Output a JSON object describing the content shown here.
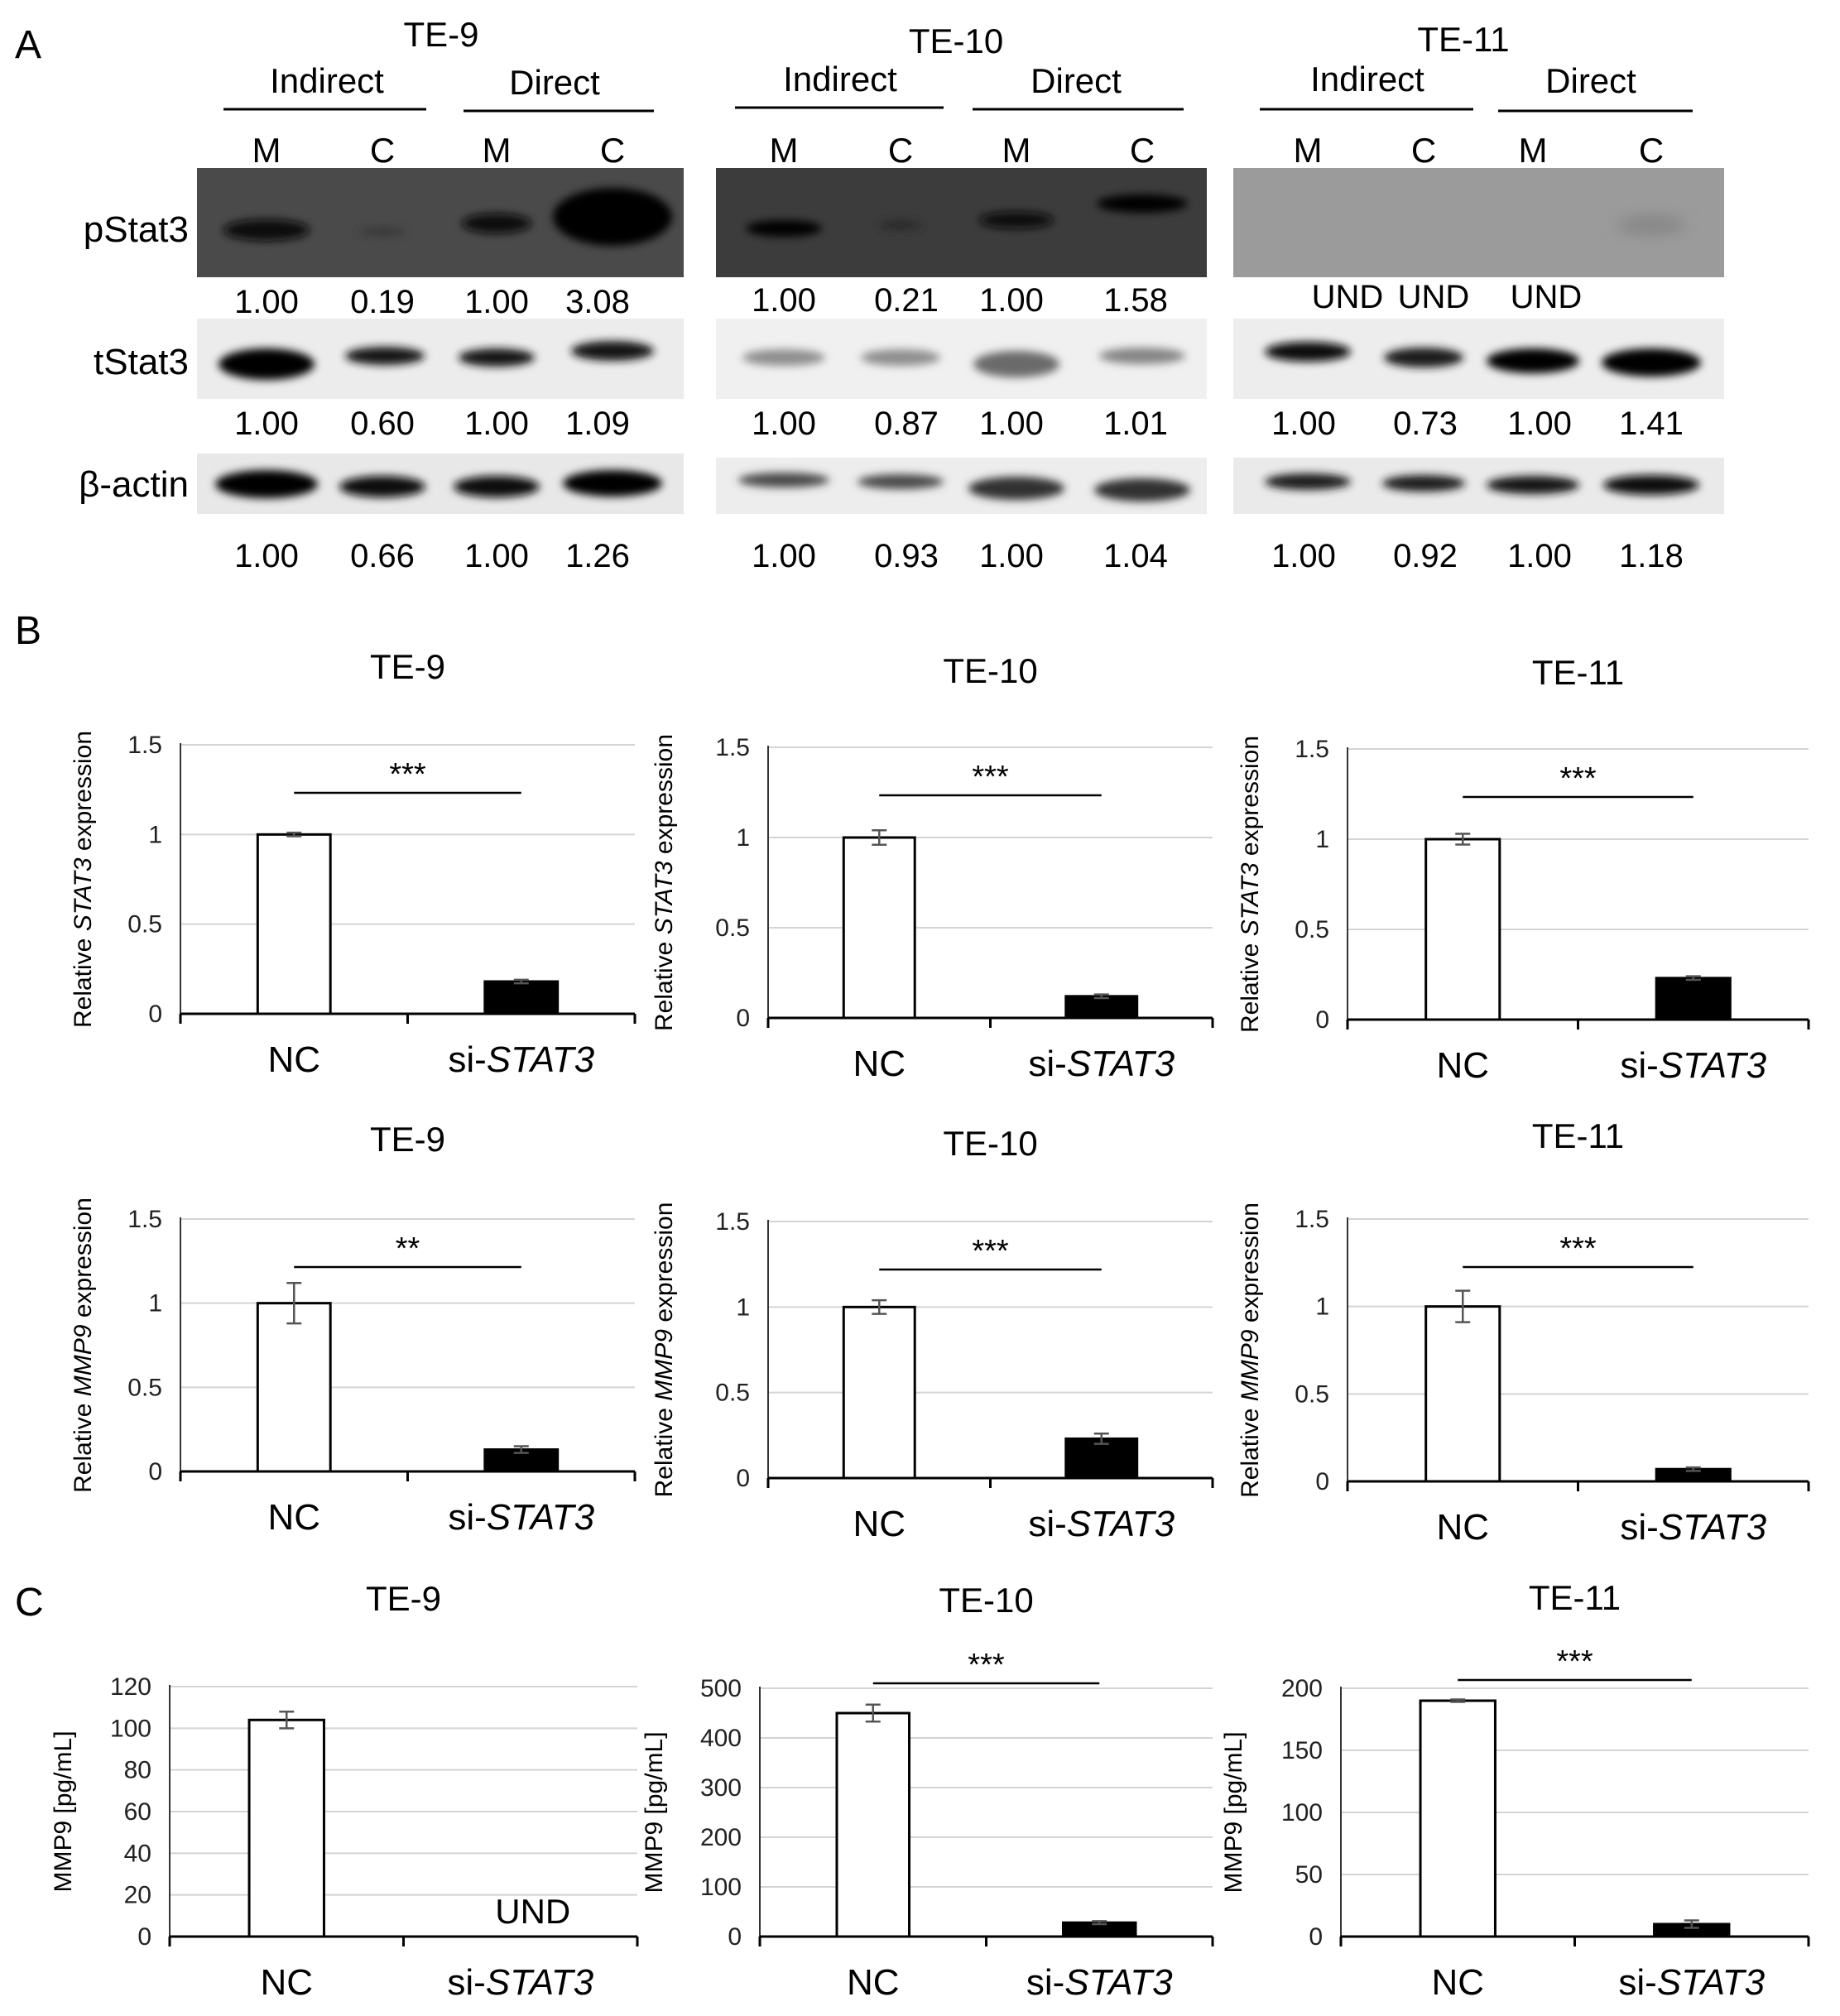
{
  "panel_letters": [
    "A",
    "B",
    "C"
  ],
  "western": {
    "lanes": [
      "M",
      "C",
      "M",
      "C"
    ],
    "groups": [
      {
        "cell": "TE-9",
        "conditions": [
          "Indirect",
          "Direct"
        ],
        "proteins": [
          {
            "name": "pStat3",
            "values": [
              "1.00",
              "0.19",
              "1.00",
              "3.08"
            ]
          },
          {
            "name": "tStat3",
            "values": [
              "1.00",
              "0.60",
              "1.00",
              "1.09"
            ]
          },
          {
            "name": "β-actin",
            "values": [
              "1.00",
              "0.66",
              "1.00",
              "1.26"
            ]
          }
        ]
      },
      {
        "cell": "TE-10",
        "conditions": [
          "Indirect",
          "Direct"
        ],
        "proteins": [
          {
            "name": "pStat3",
            "values": [
              "1.00",
              "0.21",
              "1.00",
              "1.58"
            ]
          },
          {
            "name": "tStat3",
            "values": [
              "1.00",
              "0.87",
              "1.00",
              "1.01"
            ]
          },
          {
            "name": "β-actin",
            "values": [
              "1.00",
              "0.93",
              "1.00",
              "1.04"
            ]
          }
        ]
      },
      {
        "cell": "TE-11",
        "conditions": [
          "Indirect",
          "Direct"
        ],
        "proteins": [
          {
            "name": "pStat3",
            "values": [
              "UND",
              "UND",
              "UND",
              ""
            ]
          },
          {
            "name": "tStat3",
            "values": [
              "1.00",
              "0.73",
              "1.00",
              "1.41"
            ]
          },
          {
            "name": "β-actin",
            "values": [
              "1.00",
              "0.92",
              "1.00",
              "1.18"
            ]
          }
        ]
      }
    ]
  },
  "chart_data": [
    {
      "type": "bar",
      "title": "TE-9",
      "ylabel_pre": "Relative ",
      "ylabel_gene": "STAT3",
      "ylabel_post": " expression",
      "categories": [
        "NC",
        "si-STAT3"
      ],
      "values": [
        1.0,
        0.18
      ],
      "errors": [
        0.01,
        0.01
      ],
      "ylim": [
        0,
        1.5
      ],
      "yticks": [
        "0",
        "0.5",
        "1",
        "1.5"
      ],
      "ytick_values": [
        0,
        0.5,
        1,
        1.5
      ],
      "significance": "***",
      "bar_colors": [
        "#ffffff",
        "#000000"
      ],
      "grid": true
    },
    {
      "type": "bar",
      "title": "TE-10",
      "ylabel_pre": "Relative ",
      "ylabel_gene": "STAT3",
      "ylabel_post": " expression",
      "categories": [
        "NC",
        "si-STAT3"
      ],
      "values": [
        1.0,
        0.12
      ],
      "errors": [
        0.04,
        0.01
      ],
      "ylim": [
        0,
        1.5
      ],
      "yticks": [
        "0",
        "0.5",
        "1",
        "1.5"
      ],
      "ytick_values": [
        0,
        0.5,
        1,
        1.5
      ],
      "significance": "***",
      "bar_colors": [
        "#ffffff",
        "#000000"
      ],
      "grid": true
    },
    {
      "type": "bar",
      "title": "TE-11",
      "ylabel_pre": "Relative ",
      "ylabel_gene": "STAT3",
      "ylabel_post": " expression",
      "categories": [
        "NC",
        "si-STAT3"
      ],
      "values": [
        1.0,
        0.23
      ],
      "errors": [
        0.03,
        0.01
      ],
      "ylim": [
        0,
        1.5
      ],
      "yticks": [
        "0",
        "0.5",
        "1",
        "1.5"
      ],
      "ytick_values": [
        0,
        0.5,
        1,
        1.5
      ],
      "significance": "***",
      "bar_colors": [
        "#ffffff",
        "#000000"
      ],
      "grid": true
    },
    {
      "type": "bar",
      "title": "TE-9",
      "ylabel_pre": "Relative ",
      "ylabel_gene": "MMP9",
      "ylabel_post": " expression",
      "categories": [
        "NC",
        "si-STAT3"
      ],
      "values": [
        1.0,
        0.13
      ],
      "errors": [
        0.12,
        0.02
      ],
      "ylim": [
        0,
        1.5
      ],
      "yticks": [
        "0",
        "0.5",
        "1",
        "1.5"
      ],
      "ytick_values": [
        0,
        0.5,
        1,
        1.5
      ],
      "significance": "**",
      "bar_colors": [
        "#ffffff",
        "#000000"
      ],
      "grid": true
    },
    {
      "type": "bar",
      "title": "TE-10",
      "ylabel_pre": "Relative ",
      "ylabel_gene": "MMP9",
      "ylabel_post": " expression",
      "categories": [
        "NC",
        "si-STAT3"
      ],
      "values": [
        1.0,
        0.23
      ],
      "errors": [
        0.04,
        0.03
      ],
      "ylim": [
        0,
        1.5
      ],
      "yticks": [
        "0",
        "0.5",
        "1",
        "1.5"
      ],
      "ytick_values": [
        0,
        0.5,
        1,
        1.5
      ],
      "significance": "***",
      "bar_colors": [
        "#ffffff",
        "#000000"
      ],
      "grid": true
    },
    {
      "type": "bar",
      "title": "TE-11",
      "ylabel_pre": "Relative ",
      "ylabel_gene": "MMP9",
      "ylabel_post": " expression",
      "categories": [
        "NC",
        "si-STAT3"
      ],
      "values": [
        1.0,
        0.07
      ],
      "errors": [
        0.09,
        0.01
      ],
      "ylim": [
        0,
        1.5
      ],
      "yticks": [
        "0",
        "0.5",
        "1",
        "1.5"
      ],
      "ytick_values": [
        0,
        0.5,
        1,
        1.5
      ],
      "significance": "***",
      "bar_colors": [
        "#ffffff",
        "#000000"
      ],
      "grid": true
    },
    {
      "type": "bar",
      "title": "TE-9",
      "ylabel_pre": "MMP9 [pg/mL]",
      "ylabel_gene": "",
      "ylabel_post": "",
      "categories": [
        "NC",
        "si-STAT3"
      ],
      "values": [
        104,
        null
      ],
      "errors": [
        4,
        0
      ],
      "ylim": [
        0,
        120
      ],
      "yticks": [
        "0",
        "20",
        "40",
        "60",
        "80",
        "100",
        "120"
      ],
      "ytick_values": [
        0,
        20,
        40,
        60,
        80,
        100,
        120
      ],
      "significance": "",
      "annotation": "UND",
      "bar_colors": [
        "#ffffff",
        "#000000"
      ],
      "grid": true
    },
    {
      "type": "bar",
      "title": "TE-10",
      "ylabel_pre": "MMP9 [pg/mL]",
      "ylabel_gene": "",
      "ylabel_post": "",
      "categories": [
        "NC",
        "si-STAT3"
      ],
      "values": [
        450,
        28
      ],
      "errors": [
        17,
        3
      ],
      "ylim": [
        0,
        500
      ],
      "yticks": [
        "0",
        "100",
        "200",
        "300",
        "400",
        "500"
      ],
      "ytick_values": [
        0,
        100,
        200,
        300,
        400,
        500
      ],
      "significance": "***",
      "bar_colors": [
        "#ffffff",
        "#000000"
      ],
      "grid": true
    },
    {
      "type": "bar",
      "title": "TE-11",
      "ylabel_pre": "MMP9 [pg/mL]",
      "ylabel_gene": "",
      "ylabel_post": "",
      "categories": [
        "NC",
        "si-STAT3"
      ],
      "values": [
        190,
        10
      ],
      "errors": [
        1,
        3
      ],
      "ylim": [
        0,
        200
      ],
      "yticks": [
        "0",
        "50",
        "100",
        "150",
        "200"
      ],
      "ytick_values": [
        0,
        50,
        100,
        150,
        200
      ],
      "significance": "***",
      "bar_colors": [
        "#ffffff",
        "#000000"
      ],
      "grid": true
    }
  ]
}
